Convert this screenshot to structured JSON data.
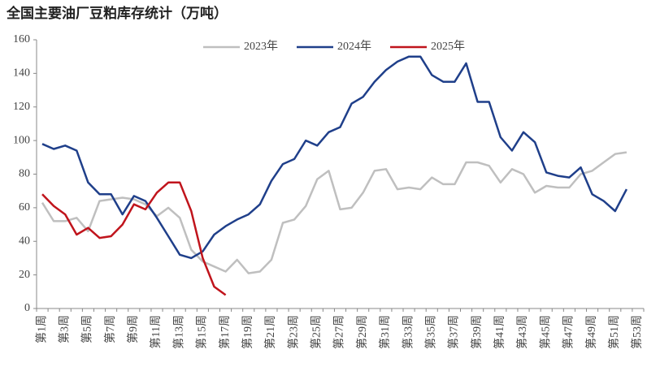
{
  "chart_data": {
    "type": "line",
    "title": "全国主要油厂豆粕库存统计（万吨）",
    "categories": [
      "第1周",
      null,
      "第3周",
      null,
      "第5周",
      null,
      "第7周",
      null,
      "第9周",
      null,
      "第11周",
      null,
      "第13周",
      null,
      "第15周",
      null,
      "第17周",
      null,
      "第19周",
      null,
      "第21周",
      null,
      "第23周",
      null,
      "第25周",
      null,
      "第27周",
      null,
      "第29周",
      null,
      "第31周",
      null,
      "第33周",
      null,
      "第35周",
      null,
      "第37周",
      null,
      "第39周",
      null,
      "第41周",
      null,
      "第43周",
      null,
      "第45周",
      null,
      "第47周",
      null,
      "第49周",
      null,
      "第51周",
      null,
      "第53周"
    ],
    "series": [
      {
        "name": "2023年",
        "color": "#bfbfbf",
        "values": [
          63,
          52,
          52,
          54,
          46,
          64,
          65,
          66,
          65,
          62,
          55,
          60,
          54,
          35,
          28,
          25,
          22,
          29,
          21,
          22,
          29,
          51,
          53,
          61,
          77,
          82,
          59,
          60,
          69,
          82,
          83,
          71,
          72,
          71,
          78,
          74,
          74,
          87,
          87,
          85,
          75,
          83,
          80,
          69,
          73,
          72,
          72,
          80,
          82,
          87,
          92,
          93,
          null
        ]
      },
      {
        "name": "2024年",
        "color": "#1f3f8a",
        "values": [
          98,
          95,
          97,
          94,
          75,
          68,
          68,
          56,
          67,
          64,
          54,
          43,
          32,
          30,
          34,
          44,
          49,
          53,
          56,
          62,
          76,
          86,
          89,
          100,
          97,
          105,
          108,
          122,
          126,
          135,
          142,
          147,
          150,
          150,
          139,
          135,
          135,
          146,
          123,
          123,
          102,
          94,
          105,
          99,
          81,
          79,
          78,
          84,
          68,
          64,
          58,
          71,
          null
        ]
      },
      {
        "name": "2025年",
        "color": "#c0141c",
        "values": [
          68,
          61,
          56,
          44,
          48,
          42,
          43,
          50,
          62,
          59,
          69,
          75,
          75,
          58,
          30,
          13,
          8,
          null,
          null,
          null,
          null,
          null,
          null,
          null,
          null,
          null,
          null,
          null,
          null,
          null,
          null,
          null,
          null,
          null,
          null,
          null,
          null,
          null,
          null,
          null,
          null,
          null,
          null,
          null,
          null,
          null,
          null,
          null,
          null,
          null,
          null,
          null,
          null
        ]
      }
    ],
    "ylim": [
      0,
      160
    ],
    "yticks": [
      0,
      20,
      40,
      60,
      80,
      100,
      120,
      140,
      160
    ],
    "legend": "top"
  }
}
